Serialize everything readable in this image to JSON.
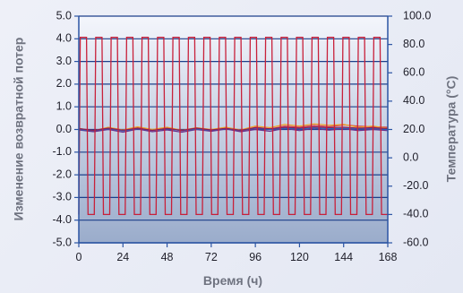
{
  "chart_data": {
    "type": "line",
    "title": "",
    "xlabel": "Время (ч)",
    "ylabel": "Изменение возвратной потер",
    "y2label": "Температура (°C)",
    "xlim": [
      0,
      168
    ],
    "ylim": [
      -5,
      5
    ],
    "y2lim": [
      -60,
      100
    ],
    "x_ticks": [
      "0",
      "24",
      "48",
      "72",
      "96",
      "120",
      "144",
      "168"
    ],
    "y_ticks": [
      "5.0",
      "4.0",
      "3.0",
      "2.0",
      "1.0",
      "0.0",
      "-1.0",
      "-2.0",
      "-3.0",
      "-4.0",
      "-5.0"
    ],
    "y2_ticks": [
      "100.0",
      "80.0",
      "60.0",
      "40.0",
      "20.0",
      "0.0",
      "-20.0",
      "-40.0",
      "-60.0"
    ],
    "grid": true,
    "colors": {
      "plot_top": "#f4f6fc",
      "plot_bottom": "#9aaccb",
      "grid": "#1c3f8a",
      "axis": "#2b54a3",
      "temperature": "#c8203a"
    },
    "temperature_profile": {
      "axis": "right",
      "color": "#c8203a",
      "cycles": 20,
      "high_c": 85,
      "low_c": -40,
      "ramp_h": 0.8,
      "dwell_h": 3.4
    },
    "series": [
      {
        "color": "#d4404e",
        "values": [
          {
            "x": 0,
            "y": 0.02
          },
          {
            "x": 8,
            "y": -0.08
          },
          {
            "x": 16,
            "y": 0.05
          },
          {
            "x": 24,
            "y": -0.04
          },
          {
            "x": 32,
            "y": 0.08
          },
          {
            "x": 40,
            "y": -0.05
          },
          {
            "x": 48,
            "y": 0.06
          },
          {
            "x": 56,
            "y": -0.06
          },
          {
            "x": 64,
            "y": 0.05
          },
          {
            "x": 72,
            "y": -0.04
          },
          {
            "x": 80,
            "y": 0.07
          },
          {
            "x": 88,
            "y": -0.08
          },
          {
            "x": 96,
            "y": 0.1
          },
          {
            "x": 104,
            "y": 0.02
          },
          {
            "x": 112,
            "y": 0.15
          },
          {
            "x": 120,
            "y": 0.1
          },
          {
            "x": 128,
            "y": 0.18
          },
          {
            "x": 136,
            "y": 0.12
          },
          {
            "x": 144,
            "y": 0.2
          },
          {
            "x": 152,
            "y": 0.15
          },
          {
            "x": 160,
            "y": 0.12
          },
          {
            "x": 168,
            "y": 0.1
          }
        ]
      },
      {
        "color": "#f0a020",
        "values": [
          {
            "x": 0,
            "y": 0.05
          },
          {
            "x": 8,
            "y": -0.05
          },
          {
            "x": 16,
            "y": 0.1
          },
          {
            "x": 24,
            "y": -0.02
          },
          {
            "x": 32,
            "y": 0.12
          },
          {
            "x": 40,
            "y": 0.0
          },
          {
            "x": 48,
            "y": 0.1
          },
          {
            "x": 56,
            "y": -0.03
          },
          {
            "x": 64,
            "y": 0.08
          },
          {
            "x": 72,
            "y": 0.0
          },
          {
            "x": 80,
            "y": 0.1
          },
          {
            "x": 88,
            "y": -0.02
          },
          {
            "x": 96,
            "y": 0.15
          },
          {
            "x": 104,
            "y": 0.08
          },
          {
            "x": 112,
            "y": 0.22
          },
          {
            "x": 120,
            "y": 0.15
          },
          {
            "x": 128,
            "y": 0.25
          },
          {
            "x": 136,
            "y": 0.18
          },
          {
            "x": 144,
            "y": 0.22
          },
          {
            "x": 152,
            "y": 0.1
          },
          {
            "x": 160,
            "y": 0.15
          },
          {
            "x": 168,
            "y": 0.05
          }
        ]
      },
      {
        "color": "#6a2c8a",
        "values": [
          {
            "x": 0,
            "y": -0.02
          },
          {
            "x": 8,
            "y": -0.1
          },
          {
            "x": 16,
            "y": 0.0
          },
          {
            "x": 24,
            "y": -0.12
          },
          {
            "x": 32,
            "y": 0.02
          },
          {
            "x": 40,
            "y": -0.1
          },
          {
            "x": 48,
            "y": -0.02
          },
          {
            "x": 56,
            "y": -0.12
          },
          {
            "x": 64,
            "y": 0.0
          },
          {
            "x": 72,
            "y": -0.08
          },
          {
            "x": 80,
            "y": 0.02
          },
          {
            "x": 88,
            "y": -0.1
          },
          {
            "x": 96,
            "y": 0.0
          },
          {
            "x": 104,
            "y": -0.08
          },
          {
            "x": 112,
            "y": 0.05
          },
          {
            "x": 120,
            "y": -0.05
          },
          {
            "x": 128,
            "y": 0.05
          },
          {
            "x": 136,
            "y": -0.03
          },
          {
            "x": 144,
            "y": 0.03
          },
          {
            "x": 152,
            "y": -0.05
          },
          {
            "x": 160,
            "y": 0.0
          },
          {
            "x": 168,
            "y": -0.05
          }
        ]
      },
      {
        "color": "#2a66b8",
        "values": [
          {
            "x": 0,
            "y": 0.0
          },
          {
            "x": 8,
            "y": -0.05
          },
          {
            "x": 16,
            "y": 0.03
          },
          {
            "x": 24,
            "y": -0.06
          },
          {
            "x": 32,
            "y": 0.04
          },
          {
            "x": 40,
            "y": -0.04
          },
          {
            "x": 48,
            "y": 0.03
          },
          {
            "x": 56,
            "y": -0.05
          },
          {
            "x": 64,
            "y": 0.02
          },
          {
            "x": 72,
            "y": -0.03
          },
          {
            "x": 80,
            "y": 0.04
          },
          {
            "x": 88,
            "y": -0.04
          },
          {
            "x": 96,
            "y": 0.05
          },
          {
            "x": 104,
            "y": 0.0
          },
          {
            "x": 112,
            "y": 0.06
          },
          {
            "x": 120,
            "y": 0.02
          },
          {
            "x": 128,
            "y": 0.07
          },
          {
            "x": 136,
            "y": 0.03
          },
          {
            "x": 144,
            "y": 0.05
          },
          {
            "x": 152,
            "y": 0.02
          },
          {
            "x": 160,
            "y": 0.04
          },
          {
            "x": 168,
            "y": 0.0
          }
        ]
      },
      {
        "color": "#8a1f5a",
        "values": [
          {
            "x": 0,
            "y": 0.04
          },
          {
            "x": 8,
            "y": -0.04
          },
          {
            "x": 16,
            "y": 0.06
          },
          {
            "x": 24,
            "y": -0.03
          },
          {
            "x": 32,
            "y": 0.06
          },
          {
            "x": 40,
            "y": -0.04
          },
          {
            "x": 48,
            "y": 0.05
          },
          {
            "x": 56,
            "y": -0.04
          },
          {
            "x": 64,
            "y": 0.06
          },
          {
            "x": 72,
            "y": -0.02
          },
          {
            "x": 80,
            "y": 0.05
          },
          {
            "x": 88,
            "y": -0.03
          },
          {
            "x": 96,
            "y": 0.08
          },
          {
            "x": 104,
            "y": 0.03
          },
          {
            "x": 112,
            "y": 0.1
          },
          {
            "x": 120,
            "y": 0.06
          },
          {
            "x": 128,
            "y": 0.12
          },
          {
            "x": 136,
            "y": 0.08
          },
          {
            "x": 144,
            "y": 0.1
          },
          {
            "x": 152,
            "y": 0.06
          },
          {
            "x": 160,
            "y": 0.08
          },
          {
            "x": 168,
            "y": 0.04
          }
        ]
      }
    ]
  }
}
